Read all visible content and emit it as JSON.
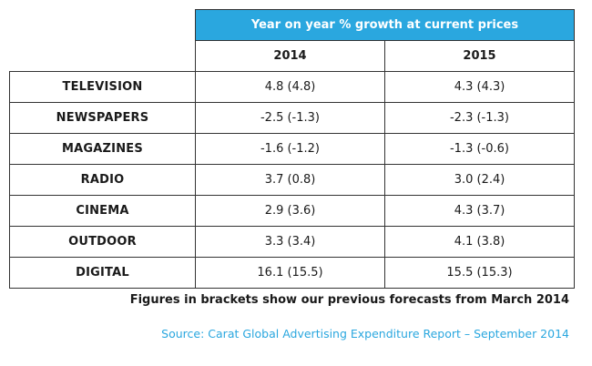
{
  "chart_data": {
    "type": "table",
    "header_title": "Year on year % growth at current prices",
    "columns": [
      "2014",
      "2015"
    ],
    "rows": [
      {
        "label": "TELEVISION",
        "values": [
          "4.8 (4.8)",
          "4.3 (4.3)"
        ]
      },
      {
        "label": "NEWSPAPERS",
        "values": [
          "-2.5 (-1.3)",
          "-2.3 (-1.3)"
        ]
      },
      {
        "label": "MAGAZINES",
        "values": [
          "-1.6 (-1.2)",
          "-1.3 (-0.6)"
        ]
      },
      {
        "label": "RADIO",
        "values": [
          "3.7 (0.8)",
          "3.0 (2.4)"
        ]
      },
      {
        "label": "CINEMA",
        "values": [
          "2.9 (3.6)",
          "4.3 (3.7)"
        ]
      },
      {
        "label": "OUTDOOR",
        "values": [
          "3.3 (3.4)",
          "4.1 (3.8)"
        ]
      },
      {
        "label": "DIGITAL",
        "values": [
          "16.1 (15.5)",
          "15.5 (15.3)"
        ]
      }
    ]
  },
  "footnote": "Figures in brackets show our previous forecasts from March 2014",
  "source": "Source: Carat Global Advertising Expenditure Report – September 2014",
  "colors": {
    "accent": "#2aa7df",
    "border": "#333333",
    "text": "#1a1a1a"
  }
}
